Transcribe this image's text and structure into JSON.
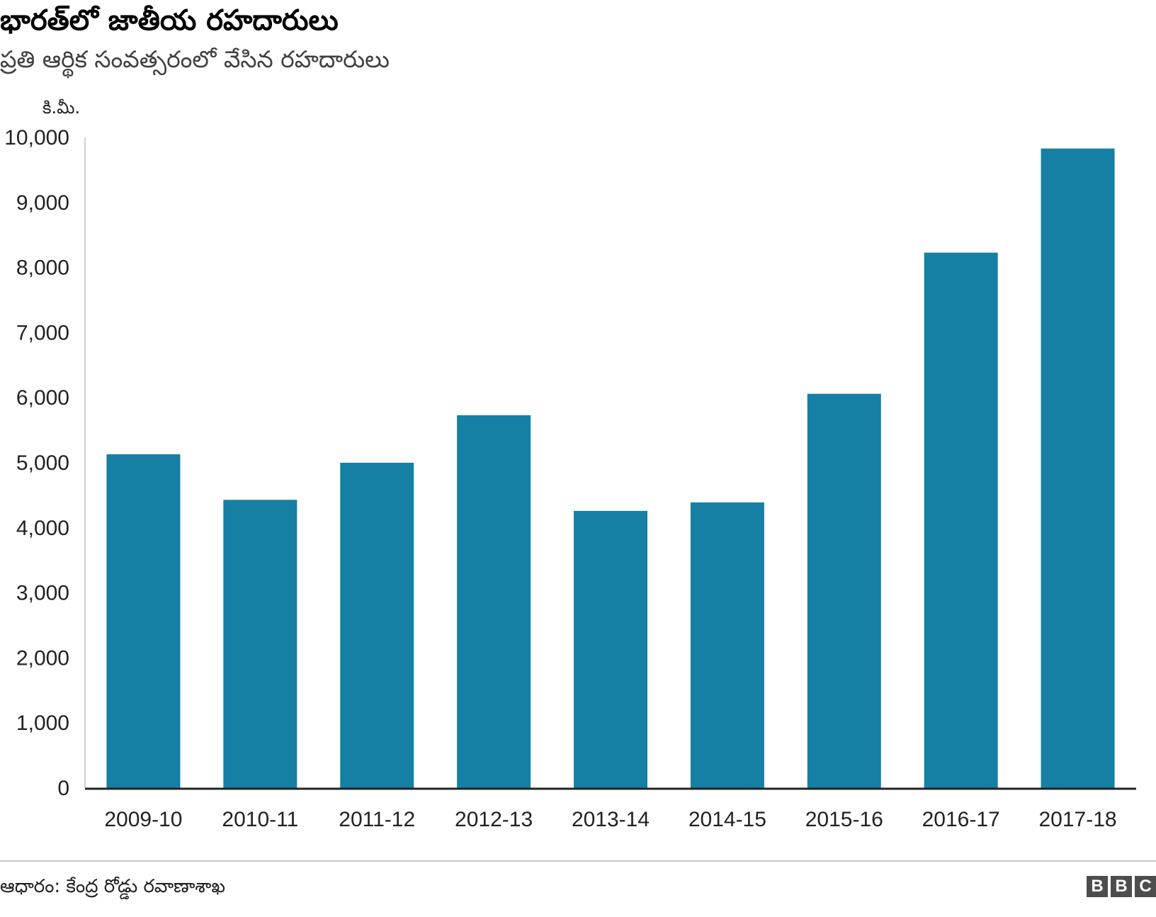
{
  "title": "భారత్‌లో జాతీయ రహదారులు",
  "subtitle": "ప్రతి ఆర్థిక సంవత్సరంలో వేసిన రహదారులు",
  "source": "ఆధారం: కేంద్ర రోడ్డు రవాణాశాఖ",
  "logo": "BBC",
  "colors": {
    "bar": "#1580a3",
    "axis": "#222222",
    "axis_line_y": "#d0d0d0"
  },
  "chart_data": {
    "type": "bar",
    "title": "భారత్‌లో జాతీయ రహదారులు",
    "subtitle": "ప్రతి ఆర్థిక సంవత్సరంలో వేసిన రహదారులు",
    "xlabel": "",
    "ylabel": "కి.మీ.",
    "ylim": [
      0,
      10000
    ],
    "yticks": [
      "0",
      "1,000",
      "2,000",
      "3,000",
      "4,000",
      "5,000",
      "6,000",
      "7,000",
      "8,000",
      "9,000",
      "10,000"
    ],
    "ytick_values": [
      0,
      1000,
      2000,
      3000,
      4000,
      5000,
      6000,
      7000,
      8000,
      9000,
      10000
    ],
    "grid": false,
    "legend": "none",
    "categories": [
      "2009-10",
      "2010-11",
      "2011-12",
      "2012-13",
      "2013-14",
      "2014-15",
      "2015-16",
      "2016-17",
      "2017-18"
    ],
    "values": [
      5130,
      4430,
      5000,
      5730,
      4260,
      4390,
      6060,
      8230,
      9830
    ]
  }
}
